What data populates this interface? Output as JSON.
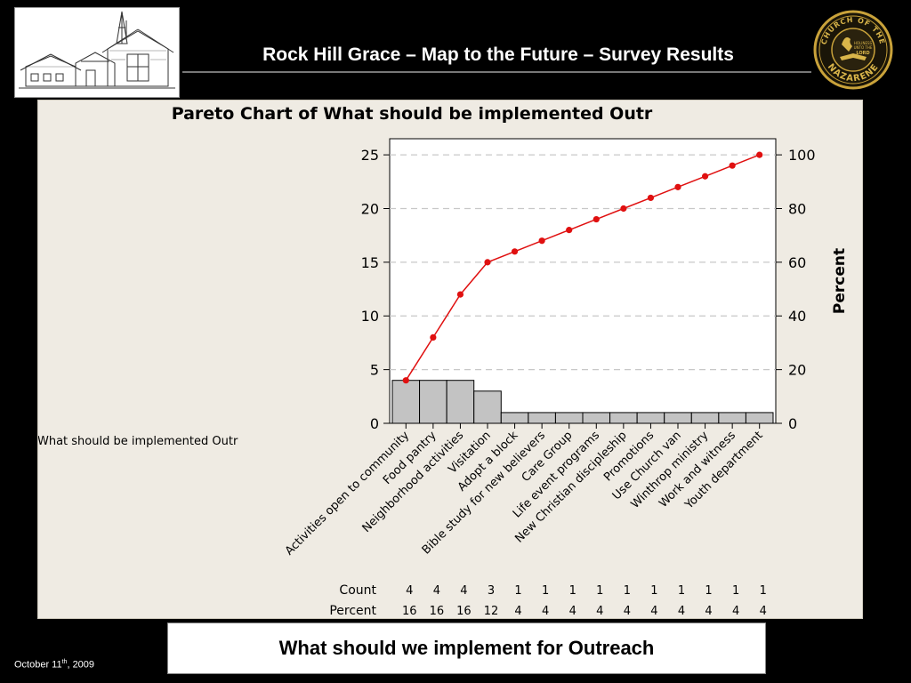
{
  "slide": {
    "title": "Rock Hill Grace – Map to the Future – Survey Results",
    "caption": "What should we implement for Outreach",
    "date_main": "October 11",
    "date_sup": "th",
    "date_year": ", 2009"
  },
  "logo_right": {
    "ring_text_top": "CHURCH OF THE",
    "ring_text_bottom": "NAZARENE",
    "inner_line1": "HOLINESS",
    "inner_line2": "UNTO THE",
    "inner_line3": "LORD"
  },
  "colors": {
    "bar_fill": "#c3c3c3",
    "cumulative_line": "#e01010",
    "panel_bg": "#efebe3"
  },
  "chart_data": {
    "type": "bar",
    "title": "Pareto Chart of What should be implemented Outr",
    "xlabel": "What should be implemented Outr",
    "ylabel": "",
    "y2label": "Percent",
    "ylim": [
      0,
      26.5
    ],
    "y2lim": [
      0,
      106
    ],
    "yticks": [
      0,
      5,
      10,
      15,
      20,
      25
    ],
    "y2ticks": [
      0,
      20,
      40,
      60,
      80,
      100
    ],
    "grid": true,
    "categories": [
      "Activities open to community",
      "Food pantry",
      "Neighborhood activities",
      "Visitation",
      "Adopt a block",
      "Bible study for new believers",
      "Care Group",
      "Life event programs",
      "New Christian discipleship",
      "Promotions",
      "Use Church van",
      "Winthrop ministry",
      "Work and witness",
      "Youth department"
    ],
    "series": [
      {
        "name": "Count",
        "values": [
          4,
          4,
          4,
          3,
          1,
          1,
          1,
          1,
          1,
          1,
          1,
          1,
          1,
          1
        ]
      },
      {
        "name": "Percent",
        "values": [
          16,
          16,
          16,
          12,
          4,
          4,
          4,
          4,
          4,
          4,
          4,
          4,
          4,
          4
        ]
      }
    ],
    "cumulative_percent": [
      16,
      32,
      48,
      60,
      64,
      68,
      72,
      76,
      80,
      84,
      88,
      92,
      96,
      100
    ],
    "table_rows": [
      {
        "label": "Count",
        "values": [
          "4",
          "4",
          "4",
          "3",
          "1",
          "1",
          "1",
          "1",
          "1",
          "1",
          "1",
          "1",
          "1",
          "1"
        ]
      },
      {
        "label": "Percent",
        "values": [
          "16",
          "16",
          "16",
          "12",
          "4",
          "4",
          "4",
          "4",
          "4",
          "4",
          "4",
          "4",
          "4",
          "4"
        ]
      }
    ]
  }
}
